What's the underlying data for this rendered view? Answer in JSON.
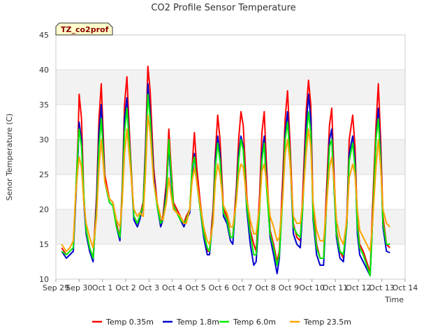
{
  "chart_data": {
    "type": "line",
    "title": "CO2 Profile Sensor Temperature",
    "xlabel": "Time",
    "ylabel": "Senor Temperature (C)",
    "badge": "TZ_co2prof",
    "ylim": [
      10,
      45
    ],
    "yticks": [
      10,
      15,
      20,
      25,
      30,
      35,
      40,
      45
    ],
    "xlim": [
      0,
      15
    ],
    "xticks": [
      {
        "pos": 0,
        "label": "Sep 29"
      },
      {
        "pos": 1,
        "label": "Sep 30"
      },
      {
        "pos": 2,
        "label": "Oct 1"
      },
      {
        "pos": 3,
        "label": "Oct 2"
      },
      {
        "pos": 4,
        "label": "Oct 3"
      },
      {
        "pos": 5,
        "label": "Oct 4"
      },
      {
        "pos": 6,
        "label": "Oct 5"
      },
      {
        "pos": 7,
        "label": "Oct 6"
      },
      {
        "pos": 8,
        "label": "Oct 7"
      },
      {
        "pos": 9,
        "label": "Oct 8"
      },
      {
        "pos": 10,
        "label": "Oct 9"
      },
      {
        "pos": 11,
        "label": "Oct 10"
      },
      {
        "pos": 12,
        "label": "Oct 11"
      },
      {
        "pos": 13,
        "label": "Oct 12"
      },
      {
        "pos": 14,
        "label": "Oct 13"
      },
      {
        "pos": 15,
        "label": "Oct 14"
      }
    ],
    "grid": "horizontal bands",
    "legend_position": "bottom",
    "series": [
      {
        "name": "Temp 0.35m",
        "color": "#ff0000",
        "x": [
          0.25,
          0.45,
          0.6,
          0.75,
          0.85,
          0.95,
          1.0,
          1.1,
          1.2,
          1.3,
          1.45,
          1.6,
          1.75,
          1.85,
          1.95,
          2.1,
          2.3,
          2.45,
          2.6,
          2.75,
          2.85,
          2.95,
          3.05,
          3.2,
          3.35,
          3.5,
          3.6,
          3.75,
          3.85,
          3.95,
          4.05,
          4.2,
          4.35,
          4.5,
          4.6,
          4.75,
          4.85,
          4.95,
          5.05,
          5.2,
          5.35,
          5.5,
          5.6,
          5.75,
          5.85,
          5.95,
          6.05,
          6.2,
          6.35,
          6.5,
          6.6,
          6.75,
          6.85,
          6.95,
          7.05,
          7.2,
          7.35,
          7.5,
          7.6,
          7.75,
          7.85,
          7.95,
          8.05,
          8.2,
          8.35,
          8.5,
          8.6,
          8.75,
          8.85,
          8.95,
          9.05,
          9.2,
          9.35,
          9.5,
          9.6,
          9.75,
          9.85,
          9.95,
          10.05,
          10.2,
          10.35,
          10.5,
          10.6,
          10.75,
          10.85,
          10.95,
          11.05,
          11.2,
          11.35,
          11.5,
          11.6,
          11.75,
          11.85,
          11.95,
          12.05,
          12.2,
          12.35,
          12.5,
          12.6,
          12.75,
          12.85,
          12.95,
          13.05,
          13.2,
          13.35,
          13.5,
          13.6,
          13.75,
          13.85,
          13.95,
          14.05,
          14.2,
          14.35
        ],
        "y": [
          14.5,
          13.5,
          14.0,
          14.5,
          22.0,
          30.0,
          36.5,
          33.0,
          22.0,
          17.0,
          14.5,
          13.0,
          22.0,
          33.0,
          38.0,
          25.0,
          21.5,
          21.0,
          18.0,
          16.0,
          23.0,
          35.0,
          39.0,
          28.0,
          19.0,
          18.0,
          19.0,
          21.0,
          29.0,
          40.5,
          37.0,
          26.0,
          21.0,
          18.0,
          19.0,
          24.0,
          31.5,
          26.0,
          21.0,
          20.0,
          19.0,
          18.0,
          19.0,
          20.0,
          26.0,
          31.0,
          26.0,
          21.0,
          17.0,
          14.0,
          14.0,
          20.0,
          28.0,
          33.5,
          30.0,
          20.0,
          19.0,
          16.0,
          16.0,
          23.0,
          30.0,
          34.0,
          32.0,
          22.0,
          17.0,
          15.0,
          14.0,
          22.0,
          31.0,
          34.0,
          26.0,
          17.0,
          15.0,
          12.5,
          14.0,
          25.0,
          33.0,
          37.0,
          30.0,
          18.0,
          16.0,
          15.5,
          22.0,
          34.0,
          38.5,
          35.0,
          20.0,
          15.0,
          13.0,
          13.0,
          21.0,
          32.0,
          34.5,
          25.0,
          17.0,
          14.0,
          13.0,
          19.0,
          30.0,
          33.5,
          29.0,
          18.0,
          15.0,
          14.0,
          12.5,
          11.0,
          20.0,
          32.0,
          38.0,
          30.0,
          19.0,
          15.0,
          14.5
        ]
      },
      {
        "name": "Temp 1.8m",
        "color": "#0000cc",
        "x": [
          0.25,
          0.45,
          0.6,
          0.75,
          0.85,
          0.95,
          1.0,
          1.1,
          1.2,
          1.3,
          1.45,
          1.6,
          1.75,
          1.85,
          1.95,
          2.1,
          2.3,
          2.45,
          2.6,
          2.75,
          2.85,
          2.95,
          3.05,
          3.2,
          3.35,
          3.5,
          3.6,
          3.75,
          3.85,
          3.95,
          4.05,
          4.2,
          4.35,
          4.5,
          4.6,
          4.75,
          4.85,
          4.95,
          5.05,
          5.2,
          5.35,
          5.5,
          5.6,
          5.75,
          5.85,
          5.95,
          6.05,
          6.2,
          6.35,
          6.5,
          6.6,
          6.75,
          6.85,
          6.95,
          7.05,
          7.2,
          7.35,
          7.5,
          7.6,
          7.75,
          7.85,
          7.95,
          8.05,
          8.2,
          8.35,
          8.5,
          8.6,
          8.75,
          8.85,
          8.95,
          9.05,
          9.2,
          9.35,
          9.5,
          9.6,
          9.75,
          9.85,
          9.95,
          10.05,
          10.2,
          10.35,
          10.5,
          10.6,
          10.75,
          10.85,
          10.95,
          11.05,
          11.2,
          11.35,
          11.5,
          11.6,
          11.75,
          11.85,
          11.95,
          12.05,
          12.2,
          12.35,
          12.5,
          12.6,
          12.75,
          12.85,
          12.95,
          13.05,
          13.2,
          13.35,
          13.5,
          13.6,
          13.75,
          13.85,
          13.95,
          14.05,
          14.2,
          14.35
        ],
        "y": [
          14.0,
          13.0,
          13.5,
          14.0,
          21.0,
          28.0,
          32.5,
          30.0,
          21.0,
          16.5,
          14.0,
          12.5,
          21.0,
          31.0,
          35.0,
          24.0,
          21.0,
          20.5,
          17.5,
          15.5,
          22.0,
          33.0,
          36.0,
          27.0,
          18.5,
          17.5,
          18.5,
          20.5,
          28.0,
          38.0,
          34.0,
          25.0,
          20.5,
          17.5,
          18.5,
          23.0,
          29.0,
          24.0,
          20.5,
          19.5,
          18.5,
          17.5,
          18.5,
          19.5,
          25.0,
          28.0,
          24.0,
          20.0,
          16.0,
          13.5,
          13.5,
          19.0,
          27.0,
          30.5,
          28.0,
          19.0,
          18.0,
          15.5,
          15.0,
          22.0,
          28.0,
          30.5,
          29.0,
          20.0,
          15.0,
          12.0,
          12.5,
          20.0,
          28.0,
          30.5,
          24.0,
          16.0,
          13.5,
          10.8,
          13.0,
          23.0,
          31.0,
          34.0,
          28.0,
          16.5,
          15.0,
          14.5,
          20.0,
          32.0,
          36.5,
          33.0,
          18.5,
          13.5,
          12.0,
          12.0,
          19.0,
          30.0,
          31.5,
          23.0,
          16.0,
          13.0,
          12.5,
          18.0,
          28.0,
          30.5,
          27.0,
          16.5,
          13.5,
          12.5,
          11.5,
          10.5,
          18.0,
          30.0,
          34.5,
          28.0,
          17.5,
          14.0,
          13.8
        ]
      },
      {
        "name": "Temp 6.0m",
        "color": "#00ee00",
        "x": [
          0.25,
          0.45,
          0.6,
          0.75,
          0.85,
          0.95,
          1.0,
          1.1,
          1.2,
          1.3,
          1.45,
          1.6,
          1.75,
          1.85,
          1.95,
          2.1,
          2.3,
          2.45,
          2.6,
          2.75,
          2.85,
          2.95,
          3.05,
          3.2,
          3.35,
          3.5,
          3.6,
          3.75,
          3.85,
          3.95,
          4.05,
          4.2,
          4.35,
          4.5,
          4.6,
          4.75,
          4.85,
          4.95,
          5.05,
          5.2,
          5.35,
          5.5,
          5.6,
          5.75,
          5.85,
          5.95,
          6.05,
          6.2,
          6.35,
          6.5,
          6.6,
          6.75,
          6.85,
          6.95,
          7.05,
          7.2,
          7.35,
          7.5,
          7.6,
          7.75,
          7.85,
          7.95,
          8.05,
          8.2,
          8.35,
          8.5,
          8.6,
          8.75,
          8.85,
          8.95,
          9.05,
          9.2,
          9.35,
          9.5,
          9.6,
          9.75,
          9.85,
          9.95,
          10.05,
          10.2,
          10.35,
          10.5,
          10.6,
          10.75,
          10.85,
          10.95,
          11.05,
          11.2,
          11.35,
          11.5,
          11.6,
          11.75,
          11.85,
          11.95,
          12.05,
          12.2,
          12.35,
          12.5,
          12.6,
          12.75,
          12.85,
          12.95,
          13.05,
          13.2,
          13.35,
          13.5,
          13.6,
          13.75,
          13.85,
          13.95,
          14.05,
          14.2,
          14.35
        ],
        "y": [
          14.0,
          13.5,
          14.0,
          14.5,
          22.0,
          29.0,
          31.5,
          29.0,
          22.0,
          17.0,
          14.5,
          13.0,
          20.0,
          29.0,
          33.0,
          24.0,
          21.0,
          20.5,
          17.5,
          16.0,
          22.0,
          31.0,
          34.5,
          27.0,
          19.0,
          18.0,
          19.0,
          20.5,
          27.0,
          36.5,
          33.0,
          24.0,
          20.5,
          18.0,
          18.5,
          22.0,
          30.0,
          25.0,
          20.5,
          19.5,
          18.5,
          18.0,
          18.5,
          20.0,
          26.0,
          27.5,
          24.0,
          20.0,
          16.5,
          14.5,
          14.0,
          18.5,
          26.0,
          29.5,
          27.0,
          19.5,
          18.5,
          16.0,
          16.0,
          21.5,
          27.0,
          30.0,
          28.5,
          20.5,
          16.5,
          13.5,
          13.5,
          20.0,
          27.0,
          29.5,
          23.0,
          16.5,
          14.5,
          12.0,
          13.5,
          22.0,
          30.0,
          32.5,
          28.0,
          17.5,
          16.5,
          16.0,
          20.0,
          30.0,
          34.0,
          31.0,
          19.0,
          14.5,
          13.0,
          13.0,
          19.0,
          29.0,
          30.0,
          23.0,
          16.5,
          14.0,
          13.5,
          18.0,
          27.0,
          29.5,
          26.0,
          17.5,
          14.5,
          13.5,
          12.0,
          10.5,
          18.0,
          30.0,
          33.0,
          27.0,
          18.0,
          15.0,
          15.0
        ]
      },
      {
        "name": "Temp 23.5m",
        "color": "#ffa500",
        "x": [
          0.25,
          0.45,
          0.6,
          0.75,
          0.85,
          0.95,
          1.0,
          1.1,
          1.2,
          1.3,
          1.45,
          1.6,
          1.75,
          1.85,
          1.95,
          2.1,
          2.3,
          2.45,
          2.6,
          2.75,
          2.85,
          2.95,
          3.05,
          3.2,
          3.35,
          3.5,
          3.6,
          3.75,
          3.85,
          3.95,
          4.05,
          4.2,
          4.35,
          4.5,
          4.6,
          4.75,
          4.85,
          4.95,
          5.05,
          5.2,
          5.35,
          5.5,
          5.6,
          5.75,
          5.85,
          5.95,
          6.05,
          6.2,
          6.35,
          6.5,
          6.6,
          6.75,
          6.85,
          6.95,
          7.05,
          7.2,
          7.35,
          7.5,
          7.6,
          7.75,
          7.85,
          7.95,
          8.05,
          8.2,
          8.35,
          8.5,
          8.6,
          8.75,
          8.85,
          8.95,
          9.05,
          9.2,
          9.35,
          9.5,
          9.6,
          9.75,
          9.85,
          9.95,
          10.05,
          10.2,
          10.35,
          10.5,
          10.6,
          10.75,
          10.85,
          10.95,
          11.05,
          11.2,
          11.35,
          11.5,
          11.6,
          11.75,
          11.85,
          11.95,
          12.05,
          12.2,
          12.35,
          12.5,
          12.6,
          12.75,
          12.85,
          12.95,
          13.05,
          13.2,
          13.35,
          13.5,
          13.6,
          13.75,
          13.85,
          13.95,
          14.05,
          14.2,
          14.35
        ],
        "y": [
          15.0,
          14.0,
          14.5,
          15.5,
          22.0,
          26.0,
          27.5,
          26.0,
          21.0,
          18.0,
          16.0,
          14.5,
          19.0,
          26.0,
          30.0,
          24.0,
          21.5,
          21.0,
          18.5,
          17.5,
          21.0,
          28.0,
          31.5,
          26.0,
          20.0,
          19.0,
          19.5,
          19.0,
          25.0,
          33.5,
          31.0,
          24.0,
          21.0,
          19.0,
          18.5,
          21.0,
          24.5,
          22.0,
          20.0,
          19.5,
          19.0,
          18.0,
          18.0,
          20.0,
          24.0,
          26.0,
          24.0,
          20.5,
          17.5,
          15.5,
          15.0,
          18.0,
          24.0,
          26.5,
          25.0,
          20.5,
          19.5,
          17.5,
          17.5,
          21.0,
          25.0,
          26.5,
          26.0,
          21.5,
          18.5,
          16.5,
          16.5,
          20.5,
          25.5,
          26.5,
          24.0,
          19.0,
          17.5,
          15.5,
          16.0,
          22.0,
          28.0,
          30.0,
          27.0,
          19.0,
          18.0,
          18.0,
          21.0,
          28.0,
          31.5,
          29.0,
          21.0,
          17.0,
          15.5,
          15.5,
          19.5,
          26.0,
          27.5,
          24.0,
          18.5,
          16.0,
          15.0,
          18.5,
          24.5,
          26.5,
          25.0,
          20.0,
          17.0,
          16.0,
          15.0,
          14.0,
          18.0,
          26.0,
          30.0,
          26.0,
          20.0,
          18.0,
          17.5
        ]
      }
    ]
  }
}
